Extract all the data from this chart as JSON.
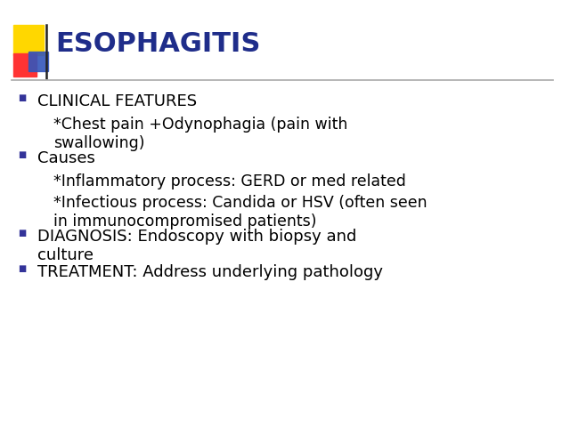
{
  "title": "ESOPHAGITIS",
  "title_color": "#1F2D8A",
  "title_fontsize": 22,
  "background_color": "#FFFFFF",
  "bullet_color": "#333399",
  "text_color": "#000000",
  "separator_line_color": "#AAAAAA",
  "logo_yellow": "#FFD700",
  "logo_red": "#FF3333",
  "logo_blue": "#3355BB",
  "logo_darkblue": "#222288",
  "bullets": [
    {
      "level": 1,
      "text": "CLINICAL FEATURES"
    },
    {
      "level": 2,
      "text": "*Chest pain +Odynophagia (pain with\nswallowing)"
    },
    {
      "level": 1,
      "text": "Causes"
    },
    {
      "level": 2,
      "text": "*Inflammatory process: GERD or med related"
    },
    {
      "level": 2,
      "text": "*Infectious process: Candida or HSV (often seen\nin immunocompromised patients)"
    },
    {
      "level": 1,
      "text": "DIAGNOSIS: Endoscopy with biopsy and\nculture"
    },
    {
      "level": 1,
      "text": "TREATMENT: Address underlying pathology"
    }
  ],
  "bullet_marker": "■",
  "bullet1_fontsize": 13,
  "bullet2_fontsize": 12.5,
  "figsize": [
    6.4,
    4.8
  ],
  "dpi": 100
}
